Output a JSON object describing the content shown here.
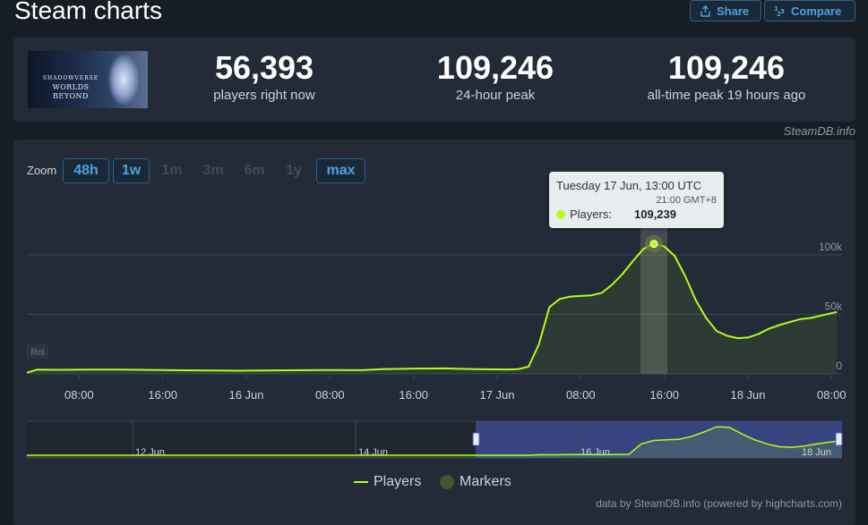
{
  "page": {
    "title": "Steam charts",
    "share_label": "Share",
    "compare_label": "Compare"
  },
  "game": {
    "logo_line1": "SHADOWVERSE",
    "logo_line2": "WORLDS BEYOND"
  },
  "stats": {
    "now_value": "56,393",
    "now_label": "players right now",
    "peak24_value": "109,246",
    "peak24_label": "24-hour peak",
    "alltime_value": "109,246",
    "alltime_label": "all-time peak 19 hours ago"
  },
  "credits": {
    "top": "SteamDB.info",
    "bottom": "data by SteamDB.info (powered by highcharts.com)"
  },
  "zoom": {
    "label": "Zoom",
    "buttons": [
      {
        "label": "48h",
        "active": true
      },
      {
        "label": "1w",
        "active": true
      },
      {
        "label": "1m",
        "active": false
      },
      {
        "label": "3m",
        "active": false
      },
      {
        "label": "6m",
        "active": false
      },
      {
        "label": "1y",
        "active": false
      },
      {
        "label": "max",
        "active": true
      }
    ]
  },
  "tooltip": {
    "date": "Tuesday 17 Jun, 13:00 UTC",
    "local_time": "21:00 GMT+8",
    "series": "Players:",
    "value": "109,239"
  },
  "legend": {
    "players": "Players",
    "markers": "Markers"
  },
  "colors": {
    "series": "#b4fe15",
    "accent": "#4aa3df",
    "marker": "#4a5230"
  },
  "chart_data": {
    "type": "line",
    "series_name": "Players",
    "x_tick_labels": [
      "08:00",
      "16:00",
      "16 Jun",
      "08:00",
      "16:00",
      "17 Jun",
      "08:00",
      "16:00",
      "18 Jun",
      "08:00"
    ],
    "y_tick_labels": [
      "0",
      "50k",
      "100k"
    ],
    "ylim": [
      0,
      110000
    ],
    "rel_badge": "Rel",
    "points": [
      [
        0,
        1000
      ],
      [
        1,
        3500
      ],
      [
        3,
        3400
      ],
      [
        6,
        3600
      ],
      [
        9,
        3500
      ],
      [
        12,
        3300
      ],
      [
        16,
        2900
      ],
      [
        20,
        2600
      ],
      [
        24,
        2900
      ],
      [
        28,
        3200
      ],
      [
        32,
        3100
      ],
      [
        34,
        4000
      ],
      [
        37,
        4400
      ],
      [
        40,
        4600
      ],
      [
        43,
        3900
      ],
      [
        46,
        3700
      ],
      [
        47,
        4000
      ],
      [
        48,
        6000
      ],
      [
        49,
        25000
      ],
      [
        50,
        56000
      ],
      [
        51,
        63000
      ],
      [
        52,
        65000
      ],
      [
        53,
        65500
      ],
      [
        54,
        66000
      ],
      [
        55,
        68000
      ],
      [
        56,
        75000
      ],
      [
        57,
        84000
      ],
      [
        58,
        95000
      ],
      [
        59,
        105000
      ],
      [
        60,
        109239
      ],
      [
        61,
        107000
      ],
      [
        62,
        99000
      ],
      [
        63,
        82000
      ],
      [
        64,
        62000
      ],
      [
        65,
        47000
      ],
      [
        66,
        36000
      ],
      [
        67,
        32000
      ],
      [
        68,
        30000
      ],
      [
        69,
        30500
      ],
      [
        70,
        33500
      ],
      [
        71,
        38000
      ],
      [
        72,
        41000
      ],
      [
        73,
        43500
      ],
      [
        74,
        46000
      ],
      [
        75,
        47000
      ],
      [
        76,
        49000
      ],
      [
        77.5,
        52000
      ]
    ],
    "highlight_index": 29,
    "navigator": {
      "tick_labels": [
        "12 Jun",
        "14 Jun",
        "16 Jun",
        "18 Jun"
      ],
      "points": [
        [
          0,
          0
        ],
        [
          40,
          0
        ],
        [
          41,
          2000
        ],
        [
          42,
          1500
        ],
        [
          44,
          2500
        ],
        [
          46,
          1800
        ],
        [
          48,
          3000
        ],
        [
          49,
          40000
        ],
        [
          50,
          52000
        ],
        [
          51,
          54000
        ],
        [
          52,
          56000
        ],
        [
          53,
          66000
        ],
        [
          54,
          82000
        ],
        [
          55,
          100000
        ],
        [
          56,
          98000
        ],
        [
          57,
          75000
        ],
        [
          58,
          55000
        ],
        [
          59,
          40000
        ],
        [
          60,
          30000
        ],
        [
          61,
          28000
        ],
        [
          62,
          32000
        ],
        [
          63,
          40000
        ],
        [
          64,
          46000
        ],
        [
          65,
          52000
        ]
      ]
    }
  }
}
